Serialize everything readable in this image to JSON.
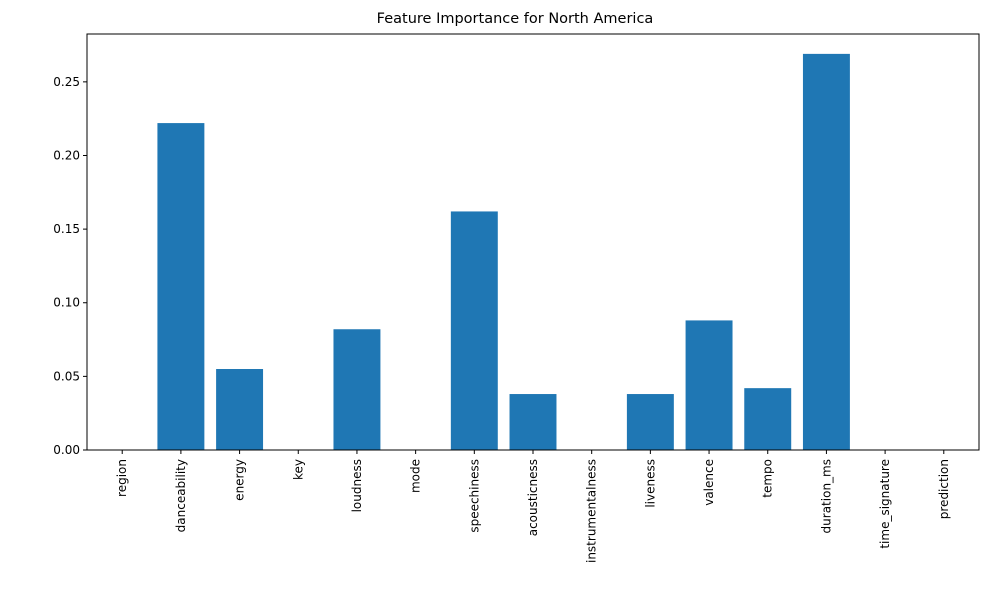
{
  "chart_data": {
    "type": "bar",
    "title": "Feature Importance for North America",
    "xlabel": "",
    "ylabel": "",
    "categories": [
      "region",
      "danceability",
      "energy",
      "key",
      "loudness",
      "mode",
      "speechiness",
      "acousticness",
      "instrumentalness",
      "liveness",
      "valence",
      "tempo",
      "duration_ms",
      "time_signature",
      "prediction"
    ],
    "values": [
      0,
      0.222,
      0.055,
      0,
      0.082,
      0,
      0.162,
      0.038,
      0,
      0.038,
      0.088,
      0.042,
      0.269,
      0,
      0
    ],
    "ylim": [
      0,
      0.2825
    ],
    "yticks": [
      0.0,
      0.05,
      0.1,
      0.15,
      0.2,
      0.25
    ],
    "ytick_labels": [
      "0.00",
      "0.05",
      "0.10",
      "0.15",
      "0.20",
      "0.25"
    ],
    "grid": false,
    "legend": "none",
    "bar_color": "#1f77b4"
  }
}
